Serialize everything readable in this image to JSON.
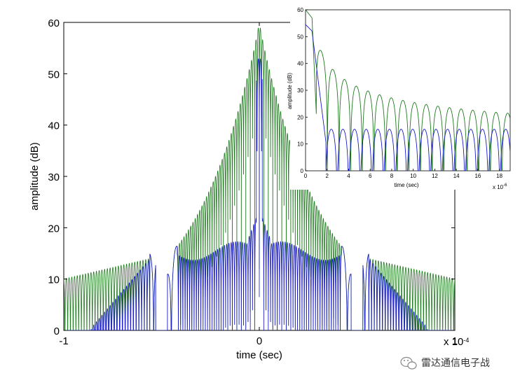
{
  "chart_data": [
    {
      "type": "line",
      "title": "",
      "xlabel": "time (sec)",
      "ylabel": "amplitude (dB)",
      "xlim": [
        -1,
        1
      ],
      "ylim": [
        0,
        60
      ],
      "x_exponent_label": "x 10^-4",
      "x_ticks": [
        "-1",
        "0",
        "1"
      ],
      "y_ticks": [
        "0",
        "10",
        "20",
        "30",
        "40",
        "50",
        "60"
      ],
      "grid": false,
      "series": [
        {
          "color": "#1f7a1f",
          "peak": 60,
          "edge": 10
        },
        {
          "color": "#1a1acc",
          "peak": 54.5,
          "edge": 0
        }
      ]
    },
    {
      "type": "line",
      "title": "",
      "xlabel": "time (sec)",
      "ylabel": "amplitude (dB)",
      "xlim": [
        0,
        19
      ],
      "ylim": [
        0,
        60
      ],
      "x_exponent_label": "x 10^-6",
      "x_ticks": [
        "0",
        "2",
        "4",
        "6",
        "8",
        "10",
        "12",
        "14",
        "16",
        "18"
      ],
      "y_ticks": [
        "0",
        "10",
        "20",
        "30",
        "40",
        "50",
        "60"
      ],
      "grid": false,
      "series": [
        {
          "color": "#1f7a1f",
          "peak": 60
        },
        {
          "color": "#1a1acc",
          "peak": 54.5
        }
      ]
    }
  ],
  "watermark": {
    "text": "雷达通信电子战",
    "icon": "wechat-icon"
  }
}
